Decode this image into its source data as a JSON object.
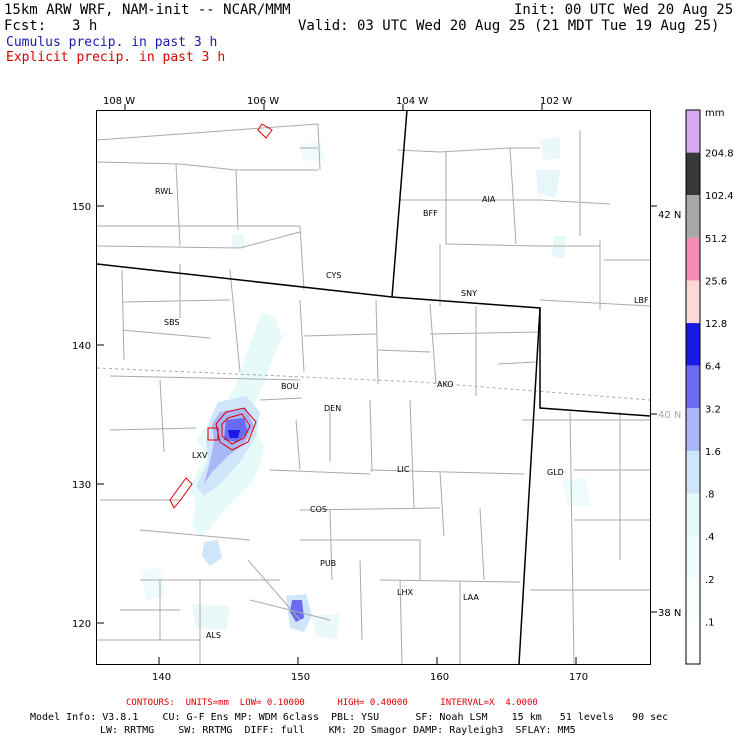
{
  "header": {
    "model": "15km ARW WRF, NAM-init -- NCAR/MMM",
    "init": "Init: 00 UTC Wed 20 Aug 25",
    "fcst_label": "Fcst:",
    "fcst_value": "3 h",
    "valid": "Valid: 03 UTC Wed 20 Aug 25 (21 MDT Tue 19 Aug 25)",
    "legend_cumulus": "Cumulus precip. in past 3 h",
    "legend_explicit": "Explicit precip. in past 3 h",
    "colors": {
      "cumulus": "#0000cc",
      "explicit": "#dd0000"
    }
  },
  "map": {
    "top_lon_labels": [
      "108 W",
      "106 W",
      "104 W",
      "102 W"
    ],
    "bottom_ticks": [
      "140",
      "150",
      "160",
      "170"
    ],
    "left_ticks": [
      "150",
      "140",
      "130",
      "120"
    ],
    "right_lat_labels": [
      "42 N",
      "40 N",
      "38 N"
    ],
    "cities": [
      "RWL",
      "BFF",
      "AIA",
      "CYS",
      "SNY",
      "LBF",
      "SBS",
      "BOU",
      "DEN",
      "AKO",
      "LXV",
      "LIC",
      "GLD",
      "COS",
      "PUB",
      "LHX",
      "LAA",
      "ALS"
    ]
  },
  "colorbar": {
    "unit": "mm",
    "levels": [
      "204.8",
      "102.4",
      "51.2",
      "25.6",
      "12.8",
      "6.4",
      "3.2",
      "1.6",
      ".8",
      ".4",
      ".2",
      ".1"
    ],
    "colors": [
      "#d9a8f0",
      "#383838",
      "#a8a8a8",
      "#f58cb6",
      "#fcd8d8",
      "#1919e6",
      "#6a6af2",
      "#a8b6f6",
      "#cfe6fa",
      "#e6fafa",
      "#f0fdfd",
      "#f8ffff",
      "#ffffff"
    ]
  },
  "footer": {
    "contours": "CONTOURS:  UNITS=mm  LOW= 0.10000      HIGH= 0.40000      INTERVAL=X  4.0000",
    "line1": "Model Info: V3.8.1    CU: G-F Ens MP: WDM 6class  PBL: YSU      SF: Noah LSM    15 km   51 levels   90 sec",
    "line2": "LW: RRTMG    SW: RRTMG  DIFF: full    KM: 2D Smagor DAMP: Rayleigh3  SFLAY: MM5"
  }
}
